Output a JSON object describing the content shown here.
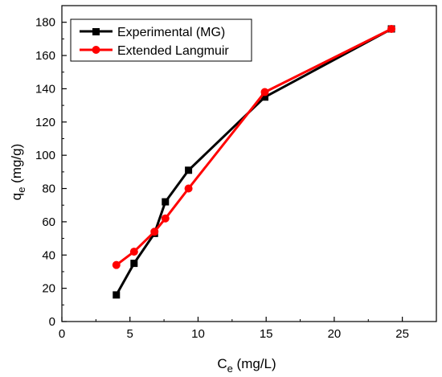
{
  "chart_data": {
    "type": "line",
    "xlabel": {
      "main": "C",
      "sub": "e",
      "unit": " (mg/L)"
    },
    "ylabel": {
      "main": "q",
      "sub": "e",
      "unit": " (mg/g)"
    },
    "xlim": [
      0,
      27.5
    ],
    "ylim": [
      0,
      190
    ],
    "x_ticks": [
      0,
      5,
      10,
      15,
      20,
      25
    ],
    "y_ticks": [
      0,
      20,
      40,
      60,
      80,
      100,
      120,
      140,
      160,
      180
    ],
    "grid": false,
    "legend_position": "top-left",
    "series": [
      {
        "name": "Experimental (MG)",
        "color": "#000000",
        "marker": "square",
        "x": [
          4.0,
          5.3,
          6.8,
          7.6,
          9.3,
          14.9,
          24.2
        ],
        "y": [
          16,
          35,
          53,
          72,
          91,
          135,
          176
        ]
      },
      {
        "name": "Extended Langmuir",
        "color": "#ff0000",
        "marker": "circle",
        "x": [
          4.0,
          5.3,
          6.8,
          7.6,
          9.3,
          14.9,
          24.2
        ],
        "y": [
          34,
          42,
          54,
          62,
          80,
          138,
          176
        ]
      }
    ]
  }
}
